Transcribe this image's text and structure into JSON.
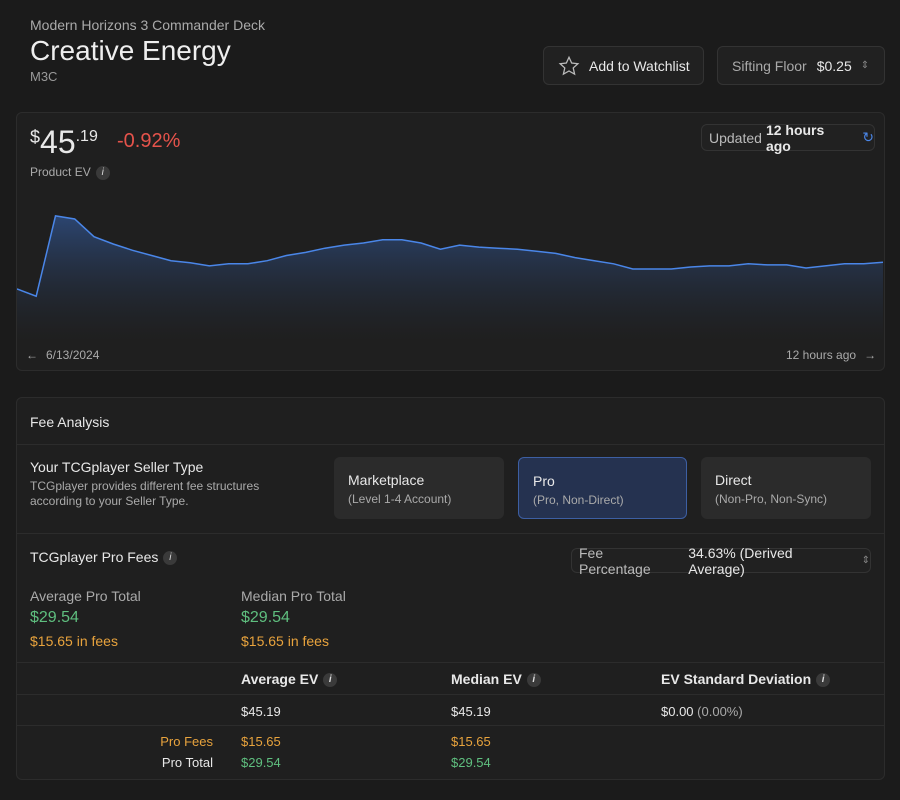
{
  "header": {
    "set": "Modern Horizons 3 Commander Deck",
    "title": "Creative Energy",
    "code": "M3C",
    "watchlist": "Add to Watchlist",
    "floor_label": "Sifting Floor",
    "floor_value": "$0.25"
  },
  "summary": {
    "currency": "$",
    "whole": "45",
    "cents": ".19",
    "change": "-0.92%",
    "label": "Product EV",
    "info": "i",
    "updated_prefix": "Updated",
    "updated_value": "12 hours ago",
    "start_date": "6/13/2024",
    "end_label": "12 hours ago"
  },
  "chart_data": {
    "type": "area",
    "color": "#4a86e8",
    "ylim": [
      29,
      59
    ],
    "values": [
      39.71,
      38.21,
      54.71,
      54.07,
      50.43,
      48.93,
      47.64,
      46.57,
      45.5,
      45.07,
      44.43,
      44.86,
      44.86,
      45.5,
      46.57,
      47.21,
      48.07,
      48.71,
      49.14,
      49.79,
      49.79,
      49.14,
      47.86,
      48.71,
      48.29,
      48.07,
      47.86,
      47.43,
      47.0,
      46.14,
      45.5,
      44.86,
      43.79,
      43.79,
      43.79,
      44.21,
      44.43,
      44.43,
      44.86,
      44.64,
      44.64,
      44.0,
      44.43,
      44.86,
      44.86,
      45.19
    ]
  },
  "fees": {
    "title": "Fee Analysis",
    "seller_title": "Your TCGplayer Seller Type",
    "seller_desc": "TCGplayer provides different fee structures according to your Seller Type.",
    "selected": 1,
    "options": [
      {
        "name": "Marketplace",
        "detail": "(Level 1-4 Account)"
      },
      {
        "name": "Pro",
        "detail": "(Pro, Non-Direct)"
      },
      {
        "name": "Direct",
        "detail": "(Non-Pro, Non-Sync)"
      }
    ],
    "pro_title": "TCGplayer Pro Fees",
    "fee_label": "Fee Percentage",
    "fee_value": "34.63% (Derived Average)",
    "avg_label": "Average Pro Total",
    "avg_total": "$29.54",
    "avg_fees": "$15.65 in fees",
    "median_label": "Median Pro Total",
    "median_total": "$29.54",
    "median_fees": "$15.65 in fees"
  },
  "table": {
    "headers": [
      "Average EV",
      "Median EV",
      "EV Standard Deviation"
    ],
    "ev_row": [
      "$45.19",
      "$45.19",
      "$0.00",
      "(0.00%)"
    ],
    "fee_row": {
      "label": "Pro Fees",
      "values": [
        "$15.65",
        "$15.65"
      ]
    },
    "total_row": {
      "label": "Pro Total",
      "values": [
        "$29.54",
        "$29.54"
      ]
    }
  }
}
